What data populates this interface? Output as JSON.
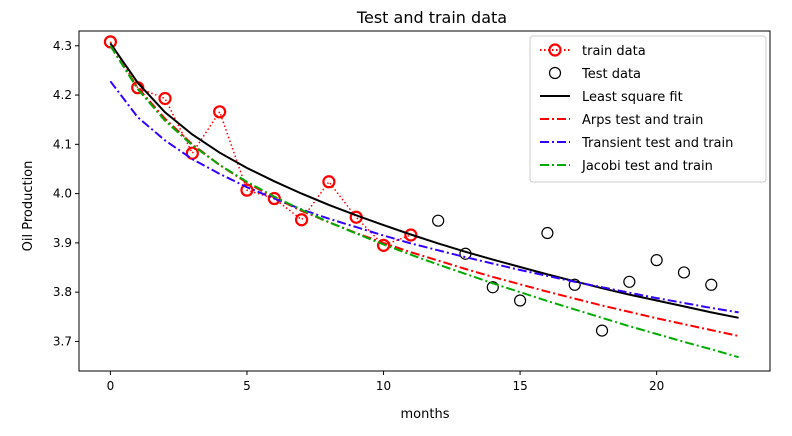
{
  "chart_data": {
    "type": "line",
    "title": "Test and train data",
    "xlabel": "months",
    "ylabel": "Oil Production",
    "xlim": [
      -1.15,
      24.15
    ],
    "ylim": [
      3.64,
      4.33
    ],
    "xticks": [
      0,
      5,
      10,
      15,
      20
    ],
    "yticks": [
      3.7,
      3.8,
      3.9,
      4.0,
      4.1,
      4.2,
      4.3
    ],
    "grid": false,
    "legend_position": "top-right",
    "series": [
      {
        "name": "train data",
        "kind": "marker-dotted-line",
        "color": "#ff0000",
        "x": [
          0,
          1,
          2,
          3,
          4,
          5,
          6,
          7,
          8,
          9,
          10,
          11
        ],
        "y": [
          4.308,
          4.215,
          4.193,
          4.082,
          4.166,
          4.007,
          3.99,
          3.947,
          4.024,
          3.952,
          3.895,
          3.916
        ]
      },
      {
        "name": "Test data",
        "kind": "marker",
        "color": "#000000",
        "x": [
          12,
          13,
          14,
          15,
          16,
          17,
          18,
          19,
          20,
          21,
          22
        ],
        "y": [
          3.945,
          3.878,
          3.81,
          3.783,
          3.92,
          3.815,
          3.722,
          3.821,
          3.865,
          3.84,
          3.815
        ]
      },
      {
        "name": "Least square fit",
        "kind": "solid",
        "color": "#000000",
        "x": [
          0,
          1,
          2,
          3,
          4,
          5,
          6,
          7,
          8,
          9,
          10,
          11,
          12,
          13,
          14,
          15,
          16,
          17,
          18,
          19,
          20,
          21,
          22,
          23
        ],
        "y": [
          4.305,
          4.225,
          4.165,
          4.12,
          4.083,
          4.052,
          4.025,
          4.0,
          3.977,
          3.956,
          3.936,
          3.917,
          3.899,
          3.882,
          3.866,
          3.851,
          3.836,
          3.822,
          3.808,
          3.795,
          3.783,
          3.771,
          3.759,
          3.748
        ]
      },
      {
        "name": "Arps test and train",
        "kind": "dashdot",
        "color": "#ff0000",
        "x": [
          0,
          1,
          2,
          3,
          4,
          5,
          6,
          7,
          8,
          9,
          10,
          11,
          12,
          13,
          14,
          15,
          16,
          17,
          18,
          19,
          20,
          21,
          22,
          23
        ],
        "y": [
          4.3,
          4.215,
          4.152,
          4.1,
          4.058,
          4.022,
          3.992,
          3.965,
          3.942,
          3.92,
          3.9,
          3.881,
          3.864,
          3.847,
          3.831,
          3.816,
          3.801,
          3.787,
          3.773,
          3.76,
          3.747,
          3.735,
          3.723,
          3.711
        ]
      },
      {
        "name": "Transient test and train",
        "kind": "dashdot",
        "color": "#3300ff",
        "x": [
          0,
          1,
          2,
          3,
          4,
          5,
          6,
          7,
          8,
          9,
          10,
          11,
          12,
          13,
          14,
          15,
          16,
          17,
          18,
          19,
          20,
          21,
          22,
          23
        ],
        "y": [
          4.228,
          4.155,
          4.108,
          4.07,
          4.04,
          4.013,
          3.99,
          3.968,
          3.949,
          3.932,
          3.915,
          3.899,
          3.885,
          3.871,
          3.858,
          3.845,
          3.833,
          3.821,
          3.81,
          3.799,
          3.788,
          3.778,
          3.768,
          3.759
        ]
      },
      {
        "name": "Jacobi test and train",
        "kind": "dashdot",
        "color": "#00aa00",
        "x": [
          0,
          1,
          2,
          3,
          4,
          5,
          6,
          7,
          8,
          9,
          10,
          11,
          12,
          13,
          14,
          15,
          16,
          17,
          18,
          19,
          20,
          21,
          22,
          23
        ],
        "y": [
          4.3,
          4.212,
          4.148,
          4.098,
          4.058,
          4.024,
          3.994,
          3.967,
          3.942,
          3.919,
          3.897,
          3.876,
          3.856,
          3.837,
          3.818,
          3.8,
          3.782,
          3.765,
          3.748,
          3.731,
          3.715,
          3.699,
          3.684,
          3.668
        ]
      }
    ]
  }
}
